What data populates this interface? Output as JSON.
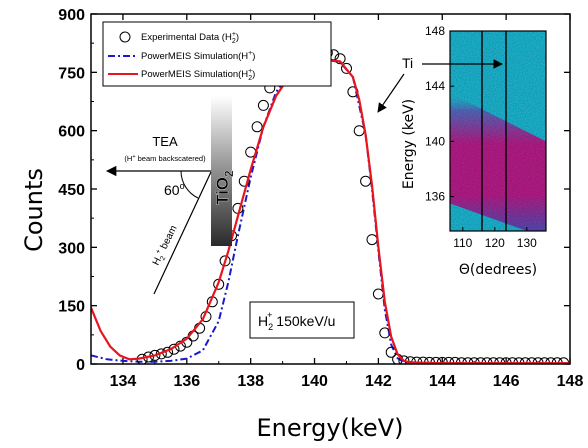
{
  "chart_data": {
    "type": "scatter",
    "xlabel": "Energy(keV)",
    "ylabel": "Counts",
    "xlim": [
      133,
      148
    ],
    "ylim": [
      0,
      900
    ],
    "xticks": [
      "134",
      "136",
      "138",
      "140",
      "142",
      "144",
      "146",
      "148"
    ],
    "yticks": [
      "0",
      "150",
      "300",
      "450",
      "600",
      "750",
      "900"
    ],
    "legend": {
      "placement": "top-left",
      "entries": [
        {
          "label": "Experimental Data (H",
          "sup": "+",
          "sub": "2",
          "close": ")",
          "style": "open-circle"
        },
        {
          "label": "PowerMEIS Simulation(H",
          "sup": "+",
          "sub": "",
          "close": ")",
          "style": "dash-dot",
          "color": "#1a1acc"
        },
        {
          "label": "PowerMEIS Simulation(H",
          "sup": "+",
          "sub": "2",
          "close": ")",
          "style": "solid",
          "color": "#e8141e"
        }
      ]
    },
    "series": [
      {
        "name": "Experimental Data (H2+)",
        "marker": "circle",
        "x": [
          134.6,
          134.8,
          135.0,
          135.2,
          135.4,
          135.6,
          135.8,
          136.0,
          136.2,
          136.4,
          136.6,
          136.8,
          137.0,
          137.2,
          137.4,
          137.6,
          137.8,
          138.0,
          138.2,
          138.4,
          138.6,
          138.8,
          139.0,
          139.2,
          139.4,
          139.6,
          139.8,
          140.0,
          140.2,
          140.4,
          140.6,
          140.8,
          141.0,
          141.2,
          141.4,
          141.6,
          141.8,
          142.0,
          142.2,
          142.4,
          142.6,
          142.8,
          143.0,
          143.2,
          143.4,
          143.6,
          143.8,
          144.0,
          144.2,
          144.4,
          144.6,
          144.8,
          145.0,
          145.2,
          145.4,
          145.6,
          145.8,
          146.0,
          146.2,
          146.4,
          146.6,
          146.8,
          147.0,
          147.2,
          147.4,
          147.6,
          147.8
        ],
        "y": [
          12,
          18,
          22,
          26,
          30,
          38,
          46,
          56,
          72,
          92,
          122,
          160,
          205,
          265,
          330,
          400,
          470,
          545,
          610,
          665,
          710,
          745,
          770,
          788,
          798,
          805,
          810,
          812,
          805,
          800,
          795,
          785,
          760,
          700,
          600,
          470,
          320,
          180,
          80,
          30,
          12,
          8,
          6,
          5,
          5,
          4,
          4,
          4,
          4,
          4,
          3,
          3,
          3,
          3,
          3,
          3,
          3,
          3,
          3,
          3,
          3,
          3,
          3,
          3,
          3,
          3,
          3
        ]
      },
      {
        "name": "PowerMEIS Simulation(H+)",
        "style": "dash-dot",
        "color": "#1a1acc",
        "x": [
          133.0,
          133.5,
          134.0,
          134.5,
          135.0,
          135.5,
          136.0,
          136.5,
          137.0,
          137.3,
          137.6,
          138.0,
          138.4,
          138.8,
          139.2,
          139.6,
          140.0,
          140.4,
          140.8,
          141.2,
          141.6,
          141.8,
          142.0,
          142.2,
          142.4,
          142.6,
          142.8,
          143.0,
          143.5,
          144.0,
          146.0,
          148.0
        ],
        "y": [
          22,
          12,
          8,
          6,
          6,
          8,
          14,
          35,
          110,
          210,
          330,
          480,
          610,
          700,
          745,
          765,
          778,
          782,
          776,
          738,
          590,
          450,
          290,
          140,
          50,
          15,
          5,
          3,
          2,
          2,
          2,
          2
        ]
      },
      {
        "name": "PowerMEIS Simulation(H2+)",
        "style": "solid",
        "color": "#e8141e",
        "x": [
          133.0,
          133.3,
          133.6,
          133.9,
          134.2,
          134.5,
          135.0,
          135.5,
          136.0,
          136.5,
          137.0,
          137.3,
          137.6,
          138.0,
          138.4,
          138.8,
          139.2,
          139.6,
          140.0,
          140.4,
          140.8,
          141.2,
          141.4,
          141.6,
          141.8,
          142.0,
          142.2,
          142.4,
          142.6,
          142.8,
          143.0,
          143.5,
          144.0,
          146.0,
          148.0
        ],
        "y": [
          145,
          85,
          45,
          22,
          12,
          14,
          22,
          38,
          65,
          115,
          210,
          290,
          380,
          500,
          610,
          690,
          738,
          762,
          776,
          782,
          778,
          738,
          680,
          590,
          460,
          300,
          160,
          70,
          25,
          8,
          4,
          3,
          2,
          2,
          2
        ]
      }
    ],
    "annotations": {
      "tea_label": "TEA",
      "tea_caption": "(H",
      "tea_caption_sup": "+",
      "tea_caption_rest": " beam backscatered)",
      "angle_label": "60",
      "angle_sup": "o",
      "material_label": "TiO",
      "material_sub": "2",
      "beam_label_h": "H",
      "beam_label_sub": "2",
      "beam_label_sup": "+",
      "beam_label_rest": " beam",
      "condition_h": "H",
      "condition_sub": "2",
      "condition_sup": "+",
      "condition_rest": " 150keV/u",
      "ti_label": "Ti"
    },
    "inset": {
      "type": "heatmap",
      "xlabel": "Θ(dedrees)",
      "ylabel": "Energy (keV)",
      "xticks": [
        "110",
        "120",
        "130"
      ],
      "xtick_values": [
        110,
        120,
        130
      ],
      "xlim": [
        106,
        136
      ],
      "yticks": [
        "136",
        "140",
        "144",
        "148"
      ],
      "ytick_values": [
        136,
        140,
        144,
        148
      ],
      "ylim": [
        133.5,
        148
      ],
      "background_color": "#1ec8e6",
      "band_color": "#c81e96",
      "vertical_lines": [
        116,
        123.5
      ]
    }
  }
}
